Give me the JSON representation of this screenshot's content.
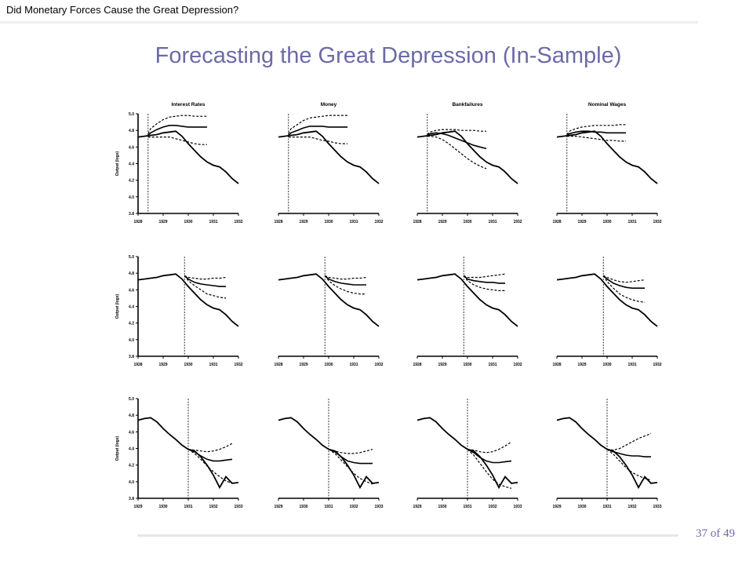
{
  "header": {
    "text": "Did Monetary Forces Cause the Great Depression?"
  },
  "title": "Forecasting the Great Depression (In-Sample)",
  "page": {
    "current": "37",
    "of_label": "of",
    "total": "49"
  },
  "colors": {
    "title": "#6b6ba8",
    "line": "#000000"
  },
  "chart_data": {
    "type": "line",
    "ylabel": "Output (logs)",
    "column_titles": [
      "Interest Rates",
      "Money",
      "Bankfailures",
      "Nominal Wages"
    ],
    "rows": [
      {
        "yticks": [
          "5.0",
          "4.8",
          "4.6",
          "4.4",
          "4.2",
          "4.0",
          "3.8"
        ],
        "ylim": [
          3.8,
          5.0
        ],
        "xticks": [
          "1928",
          "1929",
          "1930",
          "1931",
          "1932"
        ],
        "x": [
          1928.0,
          1928.25,
          1928.5,
          1928.75,
          1929.0,
          1929.25,
          1929.5,
          1929.75,
          1930.0,
          1930.25,
          1930.5,
          1930.75,
          1931.0,
          1931.25,
          1931.5,
          1931.75,
          1932.0
        ],
        "actual": [
          4.72,
          4.73,
          4.74,
          4.75,
          4.77,
          4.78,
          4.79,
          4.73,
          4.64,
          4.56,
          4.48,
          4.42,
          4.38,
          4.36,
          4.3,
          4.22,
          4.16
        ],
        "forecast_start": 1928.4,
        "panels": [
          {
            "forecast": [
              4.74,
              4.77,
              4.81,
              4.84,
              4.86,
              4.86,
              4.85,
              4.84,
              4.84,
              4.84,
              4.84
            ],
            "upper": [
              4.76,
              4.82,
              4.88,
              4.93,
              4.96,
              4.97,
              4.98,
              4.98,
              4.97,
              4.97,
              4.97
            ],
            "lower": [
              4.72,
              4.72,
              4.72,
              4.72,
              4.72,
              4.7,
              4.68,
              4.66,
              4.64,
              4.63,
              4.63
            ]
          },
          {
            "forecast": [
              4.74,
              4.77,
              4.8,
              4.83,
              4.85,
              4.85,
              4.85,
              4.84,
              4.84,
              4.84,
              4.84
            ],
            "upper": [
              4.76,
              4.82,
              4.87,
              4.92,
              4.95,
              4.96,
              4.97,
              4.98,
              4.98,
              4.98,
              4.98
            ],
            "lower": [
              4.72,
              4.72,
              4.72,
              4.72,
              4.72,
              4.7,
              4.68,
              4.67,
              4.65,
              4.64,
              4.64
            ]
          },
          {
            "forecast": [
              4.74,
              4.76,
              4.77,
              4.76,
              4.74,
              4.71,
              4.68,
              4.65,
              4.62,
              4.6,
              4.58
            ],
            "upper": [
              4.75,
              4.78,
              4.8,
              4.81,
              4.81,
              4.81,
              4.8,
              4.8,
              4.8,
              4.79,
              4.79
            ],
            "lower": [
              4.73,
              4.73,
              4.72,
              4.69,
              4.64,
              4.58,
              4.52,
              4.46,
              4.41,
              4.37,
              4.34
            ]
          },
          {
            "forecast": [
              4.74,
              4.76,
              4.78,
              4.79,
              4.79,
              4.78,
              4.78,
              4.77,
              4.77,
              4.77,
              4.77
            ],
            "upper": [
              4.75,
              4.79,
              4.82,
              4.84,
              4.85,
              4.86,
              4.86,
              4.86,
              4.86,
              4.87,
              4.87
            ],
            "lower": [
              4.73,
              4.73,
              4.73,
              4.72,
              4.71,
              4.7,
              4.69,
              4.68,
              4.68,
              4.67,
              4.67
            ]
          }
        ]
      },
      {
        "yticks": [
          "5.0",
          "4.8",
          "4.6",
          "4.4",
          "4.2",
          "4.0",
          "3.8"
        ],
        "ylim": [
          3.8,
          5.0
        ],
        "xticks": [
          "1928",
          "1929",
          "1930",
          "1931",
          "1932"
        ],
        "x": [
          1928.0,
          1928.25,
          1928.5,
          1928.75,
          1929.0,
          1929.25,
          1929.5,
          1929.75,
          1930.0,
          1930.25,
          1930.5,
          1930.75,
          1931.0,
          1931.25,
          1931.5,
          1931.75,
          1932.0
        ],
        "actual": [
          4.72,
          4.73,
          4.74,
          4.75,
          4.77,
          4.78,
          4.79,
          4.73,
          4.64,
          4.56,
          4.48,
          4.42,
          4.38,
          4.36,
          4.3,
          4.22,
          4.16
        ],
        "forecast_start": 1929.85,
        "panels": [
          {
            "forecast": [
              4.77,
              4.73,
              4.69,
              4.67,
              4.66,
              4.65,
              4.64,
              4.64
            ],
            "upper": [
              4.77,
              4.75,
              4.74,
              4.73,
              4.73,
              4.74,
              4.74,
              4.75
            ],
            "lower": [
              4.77,
              4.71,
              4.65,
              4.6,
              4.55,
              4.53,
              4.51,
              4.5
            ]
          },
          {
            "forecast": [
              4.77,
              4.73,
              4.7,
              4.68,
              4.67,
              4.66,
              4.66,
              4.66
            ],
            "upper": [
              4.77,
              4.75,
              4.74,
              4.73,
              4.73,
              4.74,
              4.74,
              4.75
            ],
            "lower": [
              4.77,
              4.71,
              4.65,
              4.61,
              4.58,
              4.56,
              4.55,
              4.55
            ]
          },
          {
            "forecast": [
              4.77,
              4.73,
              4.71,
              4.7,
              4.69,
              4.69,
              4.68,
              4.68
            ],
            "upper": [
              4.77,
              4.75,
              4.75,
              4.75,
              4.76,
              4.77,
              4.78,
              4.79
            ],
            "lower": [
              4.77,
              4.71,
              4.66,
              4.63,
              4.61,
              4.6,
              4.59,
              4.59
            ]
          },
          {
            "forecast": [
              4.77,
              4.73,
              4.68,
              4.65,
              4.63,
              4.62,
              4.62,
              4.62
            ],
            "upper": [
              4.77,
              4.75,
              4.72,
              4.7,
              4.69,
              4.7,
              4.71,
              4.72
            ],
            "lower": [
              4.77,
              4.7,
              4.62,
              4.55,
              4.51,
              4.48,
              4.46,
              4.45
            ]
          }
        ]
      },
      {
        "yticks": [
          "5.0",
          "4.8",
          "4.6",
          "4.4",
          "4.2",
          "4.0",
          "3.8"
        ],
        "ylim": [
          3.8,
          5.0
        ],
        "xticks": [
          "1929",
          "1930",
          "1931",
          "1932",
          "1933"
        ],
        "x": [
          1929.0,
          1929.25,
          1929.5,
          1929.75,
          1930.0,
          1930.25,
          1930.5,
          1930.75,
          1931.0,
          1931.25,
          1931.5,
          1931.75,
          1932.0,
          1932.25,
          1932.5,
          1932.75,
          1933.0
        ],
        "actual": [
          4.74,
          4.76,
          4.77,
          4.72,
          4.64,
          4.57,
          4.51,
          4.44,
          4.39,
          4.37,
          4.3,
          4.2,
          4.08,
          3.93,
          4.06,
          3.98,
          3.99
        ],
        "forecast_start": 1931.0,
        "panels": [
          {
            "forecast": [
              4.39,
              4.36,
              4.31,
              4.27,
              4.25,
              4.25,
              4.26,
              4.27
            ],
            "upper": [
              4.39,
              4.38,
              4.37,
              4.36,
              4.37,
              4.39,
              4.42,
              4.46
            ],
            "lower": [
              4.39,
              4.34,
              4.27,
              4.19,
              4.12,
              4.06,
              4.01,
              3.98
            ]
          },
          {
            "forecast": [
              4.39,
              4.36,
              4.3,
              4.25,
              4.23,
              4.22,
              4.22,
              4.22
            ],
            "upper": [
              4.39,
              4.37,
              4.35,
              4.34,
              4.34,
              4.35,
              4.37,
              4.39
            ],
            "lower": [
              4.39,
              4.34,
              4.26,
              4.18,
              4.1,
              4.04,
              4.0,
              3.97
            ]
          },
          {
            "forecast": [
              4.39,
              4.35,
              4.29,
              4.25,
              4.23,
              4.23,
              4.24,
              4.25
            ],
            "upper": [
              4.39,
              4.38,
              4.36,
              4.35,
              4.36,
              4.39,
              4.43,
              4.48
            ],
            "lower": [
              4.39,
              4.32,
              4.22,
              4.12,
              4.03,
              3.97,
              3.94,
              3.92
            ]
          },
          {
            "forecast": [
              4.39,
              4.36,
              4.34,
              4.32,
              4.31,
              4.31,
              4.3,
              4.3
            ],
            "upper": [
              4.39,
              4.38,
              4.4,
              4.44,
              4.48,
              4.52,
              4.55,
              4.58
            ],
            "lower": [
              4.39,
              4.33,
              4.25,
              4.17,
              4.11,
              4.07,
              4.04,
              4.02
            ]
          }
        ]
      }
    ]
  }
}
